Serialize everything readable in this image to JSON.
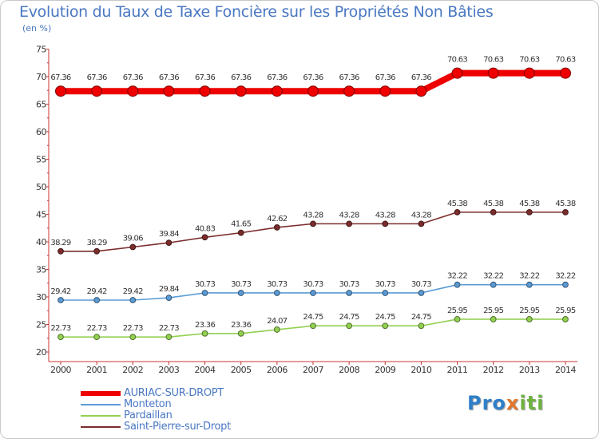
{
  "chart_data": {
    "type": "line",
    "title": "Evolution du Taux de Taxe Foncière sur les Propriétés Non Bâties",
    "ylabel": "(en %)",
    "xlabel": "",
    "ylim": [
      20,
      75
    ],
    "yticks": [
      "20",
      "25",
      "30",
      "35",
      "40",
      "45",
      "50",
      "55",
      "60",
      "65",
      "70",
      "75"
    ],
    "categories": [
      "2000",
      "2001",
      "2002",
      "2003",
      "2004",
      "2005",
      "2006",
      "2007",
      "2008",
      "2009",
      "2010",
      "2011",
      "2012",
      "2013",
      "2014"
    ],
    "series": [
      {
        "name": "AURIAC-SUR-DROPT",
        "color": "#ee0000",
        "values": [
          67.36,
          67.36,
          67.36,
          67.36,
          67.36,
          67.36,
          67.36,
          67.36,
          67.36,
          67.36,
          67.36,
          70.63,
          70.63,
          70.63,
          70.63
        ],
        "labels": [
          "67.36",
          "67.36",
          "67.36",
          "67.36",
          "67.36",
          "67.36",
          "67.36",
          "67.36",
          "67.36",
          "67.36",
          "67.36",
          "70.63",
          "70.63",
          "70.63",
          "70.63"
        ]
      },
      {
        "name": "Monteton",
        "color": "#5b9bd5",
        "values": [
          29.42,
          29.42,
          29.42,
          29.84,
          30.73,
          30.73,
          30.73,
          30.73,
          30.73,
          30.73,
          30.73,
          32.22,
          32.22,
          32.22,
          32.22
        ],
        "labels": [
          "29.42",
          "29.42",
          "29.42",
          "29.84",
          "30.73",
          "30.73",
          "30.73",
          "30.73",
          "30.73",
          "30.73",
          "30.73",
          "32.22",
          "32.22",
          "32.22",
          "32.22"
        ]
      },
      {
        "name": "Pardaillan",
        "color": "#92d050",
        "values": [
          22.73,
          22.73,
          22.73,
          22.73,
          23.36,
          23.36,
          24.07,
          24.75,
          24.75,
          24.75,
          24.75,
          25.95,
          25.95,
          25.95,
          25.95
        ],
        "labels": [
          "22.73",
          "22.73",
          "22.73",
          "22.73",
          "23.36",
          "23.36",
          "24.07",
          "24.75",
          "24.75",
          "24.75",
          "24.75",
          "25.95",
          "25.95",
          "25.95",
          "25.95"
        ]
      },
      {
        "name": "Saint-Pierre-sur-Dropt",
        "color": "#7b2c2c",
        "values": [
          38.29,
          38.29,
          39.06,
          39.84,
          40.83,
          41.65,
          42.62,
          43.28,
          43.28,
          43.28,
          43.28,
          45.38,
          45.38,
          45.38,
          45.38
        ],
        "labels": [
          "38.29",
          "38.29",
          "39.06",
          "39.84",
          "40.83",
          "41.65",
          "42.62",
          "43.28",
          "43.28",
          "43.28",
          "43.28",
          "45.38",
          "45.38",
          "45.38",
          "45.38"
        ]
      }
    ],
    "legend_position": "bottom-left",
    "grid": false
  },
  "logo": {
    "parts": [
      "Pro",
      "x",
      "iti"
    ]
  }
}
